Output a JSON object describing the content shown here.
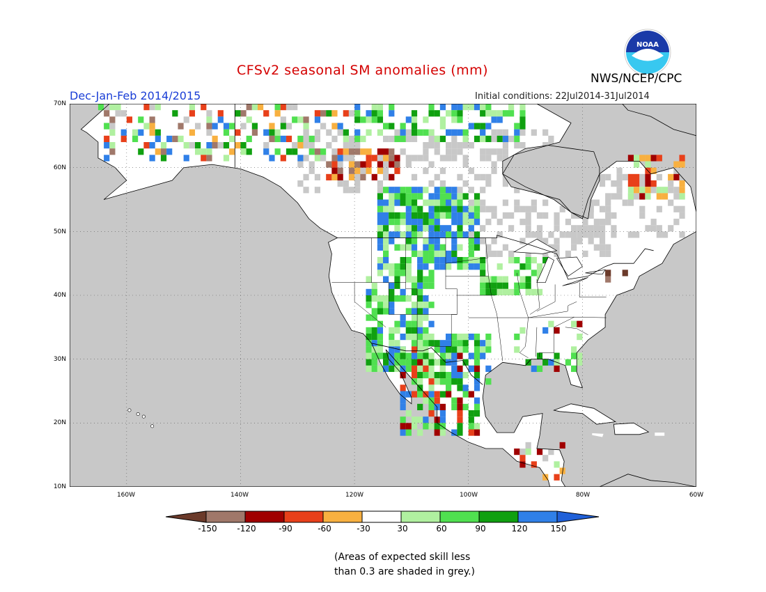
{
  "header": {
    "title": "CFSv2 seasonal SM anomalies (mm)",
    "period": "Dec-Jan-Feb 2014/2015",
    "initial_conditions": "Initial conditions: 22Jul2014-31Jul2014",
    "agency": "NWS/NCEP/CPC",
    "logo_text": "NOAA"
  },
  "map": {
    "lat_labels": [
      "70N",
      "60N",
      "50N",
      "40N",
      "30N",
      "20N",
      "10N"
    ],
    "lon_labels": [
      "160W",
      "140W",
      "120W",
      "100W",
      "80W",
      "60W"
    ],
    "grey_meaning": "skill less than 0.3"
  },
  "colorbar": {
    "labels": [
      "-150",
      "-120",
      "-90",
      "-60",
      "-30",
      "30",
      "60",
      "90",
      "120",
      "150"
    ],
    "colors": [
      "#6b3a2a",
      "#a0786a",
      "#a00000",
      "#e8401a",
      "#f8b040",
      "#ffffff",
      "#b0f0a0",
      "#50e050",
      "#10a010",
      "#3080e8",
      "#2060d8"
    ]
  },
  "footnote": {
    "line1": "(Areas of expected skill less",
    "line2": "than 0.3 are shaded in grey.)"
  }
}
